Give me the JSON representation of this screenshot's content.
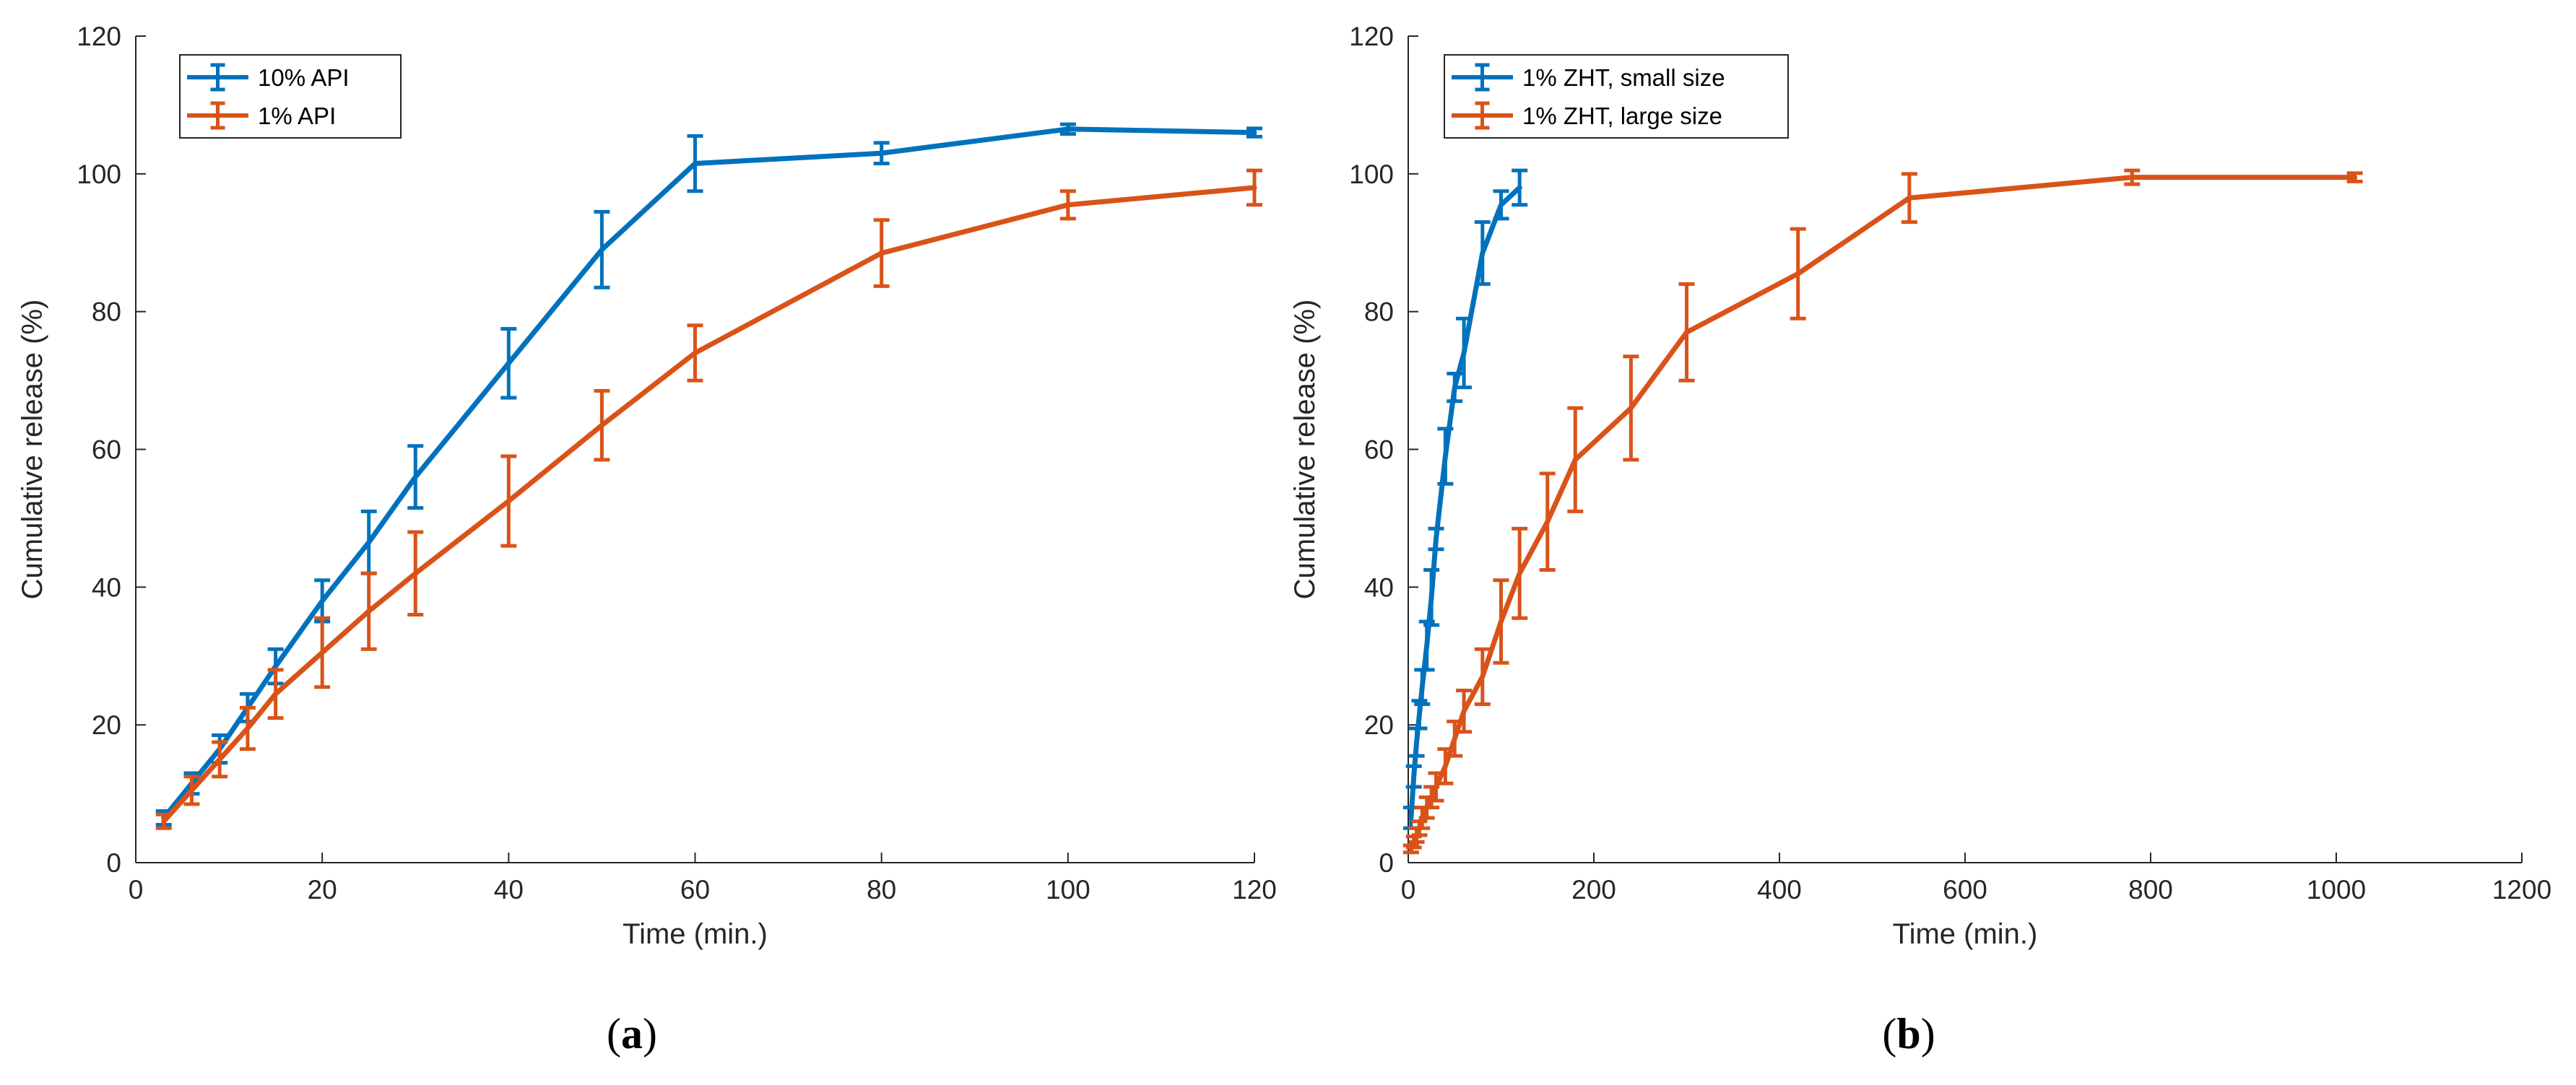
{
  "colors": {
    "blue": "#0072BD",
    "orange": "#D95319",
    "axis": "#262626"
  },
  "panel_labels": [
    "(a)",
    "(b)"
  ],
  "chart_data": [
    {
      "type": "line",
      "panel": "(a)",
      "xlabel": "Time (min.)",
      "ylabel": "Cumulative release (%)",
      "xlim": [
        0,
        120
      ],
      "ylim": [
        0,
        120
      ],
      "xticks": [
        0,
        20,
        40,
        60,
        80,
        100,
        120
      ],
      "yticks": [
        0,
        20,
        40,
        60,
        80,
        100,
        120
      ],
      "legend_position": "top-left",
      "series": [
        {
          "name": "10% API",
          "color": "#0072BD",
          "x": [
            3,
            6,
            9,
            12,
            15,
            20,
            25,
            30,
            40,
            50,
            60,
            80,
            100,
            120
          ],
          "y": [
            6.5,
            11.5,
            16.5,
            22.5,
            28.5,
            38,
            46.5,
            56,
            72.5,
            89,
            101.5,
            103,
            106.5,
            106
          ],
          "err": [
            1,
            1.5,
            2,
            2,
            2.5,
            3,
            4.5,
            4.5,
            5,
            5.5,
            4,
            1.5,
            0.7,
            0.6
          ]
        },
        {
          "name": "1% API",
          "color": "#D95319",
          "x": [
            3,
            6,
            9,
            12,
            15,
            20,
            25,
            30,
            40,
            50,
            60,
            80,
            100,
            120
          ],
          "y": [
            6,
            10.5,
            15,
            19.5,
            24.5,
            30.5,
            36.5,
            42,
            52.5,
            63.5,
            74,
            88.5,
            95.5,
            98
          ],
          "err": [
            1,
            2,
            2.5,
            3,
            3.5,
            5,
            5.5,
            6,
            6.5,
            5,
            4,
            4.8,
            2,
            2.5
          ]
        }
      ]
    },
    {
      "type": "line",
      "panel": "(b)",
      "xlabel": "Time (min.)",
      "ylabel": "Cumulative release (%)",
      "xlim": [
        0,
        1200
      ],
      "ylim": [
        0,
        120
      ],
      "xticks": [
        0,
        200,
        400,
        600,
        800,
        1000,
        1200
      ],
      "yticks": [
        0,
        20,
        40,
        60,
        80,
        100,
        120
      ],
      "legend_position": "top-left",
      "series": [
        {
          "name": "1% ZHT, small size",
          "color": "#0072BD",
          "x": [
            3,
            6,
            9,
            12,
            15,
            20,
            25,
            30,
            40,
            50,
            60,
            80,
            100,
            120
          ],
          "y": [
            6.5,
            12.5,
            17.5,
            21.5,
            25.5,
            31.5,
            38.5,
            47,
            59,
            69,
            74,
            88.5,
            95.5,
            98
          ],
          "err": [
            1.5,
            1.5,
            2,
            2,
            2.5,
            3.5,
            4,
            1.5,
            4,
            2,
            5,
            4.5,
            2,
            2.5
          ]
        },
        {
          "name": "1% ZHT, large size",
          "color": "#D95319",
          "x": [
            3,
            6,
            9,
            12,
            15,
            20,
            25,
            30,
            40,
            50,
            60,
            80,
            100,
            120,
            150,
            180,
            240,
            300,
            420,
            540,
            780,
            1020
          ],
          "y": [
            2,
            3,
            4,
            5,
            6.5,
            8,
            9.5,
            11,
            14,
            18,
            22,
            27,
            35,
            42,
            49.5,
            58.5,
            66,
            77,
            85.5,
            96.5,
            99.5,
            99.5
          ],
          "err": [
            0.5,
            0.8,
            1,
            1,
            1.5,
            1.5,
            1.5,
            2,
            2.5,
            2.5,
            3,
            4,
            6,
            6.5,
            7,
            7.5,
            7.5,
            7,
            6.5,
            3.5,
            1,
            0.6
          ]
        }
      ]
    }
  ]
}
